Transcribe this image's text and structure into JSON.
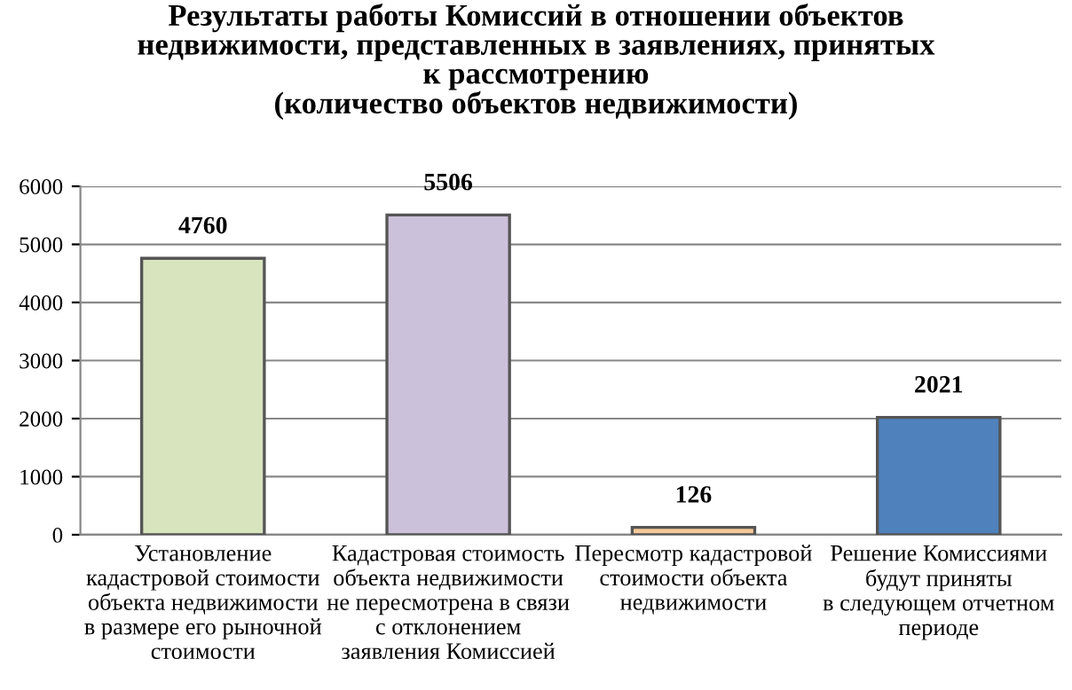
{
  "chart_data": {
    "type": "bar",
    "title": "Результаты работы Комиссий в отношении объектов\nнедвижимости, представленных в заявлениях, принятых\nк рассмотрению\n(количество объектов недвижимости)",
    "categories": [
      "Установление\nкадастровой стоимости\nобъекта недвижимости\nв размере его рыночной\nстоимости",
      "Кадастровая стоимость\nобъекта недвижимости\nне пересмотрена в связи\nс отклонением\nзаявления Комиссией",
      "Пересмотр кадастровой\nстоимости объекта\nнедвижимости",
      "Решение Комиссиями\nбудут приняты\nв следующем отчетном\nпериоде"
    ],
    "values": [
      4760,
      5506,
      126,
      2021
    ],
    "colors": [
      "#d7e4bd",
      "#ccc1da",
      "#f5c89a",
      "#4f81bd"
    ],
    "ylim": [
      0,
      6000
    ],
    "yticks": [
      0,
      1000,
      2000,
      3000,
      4000,
      5000,
      6000
    ],
    "grid": "y",
    "data_labels": true,
    "legend": false
  }
}
